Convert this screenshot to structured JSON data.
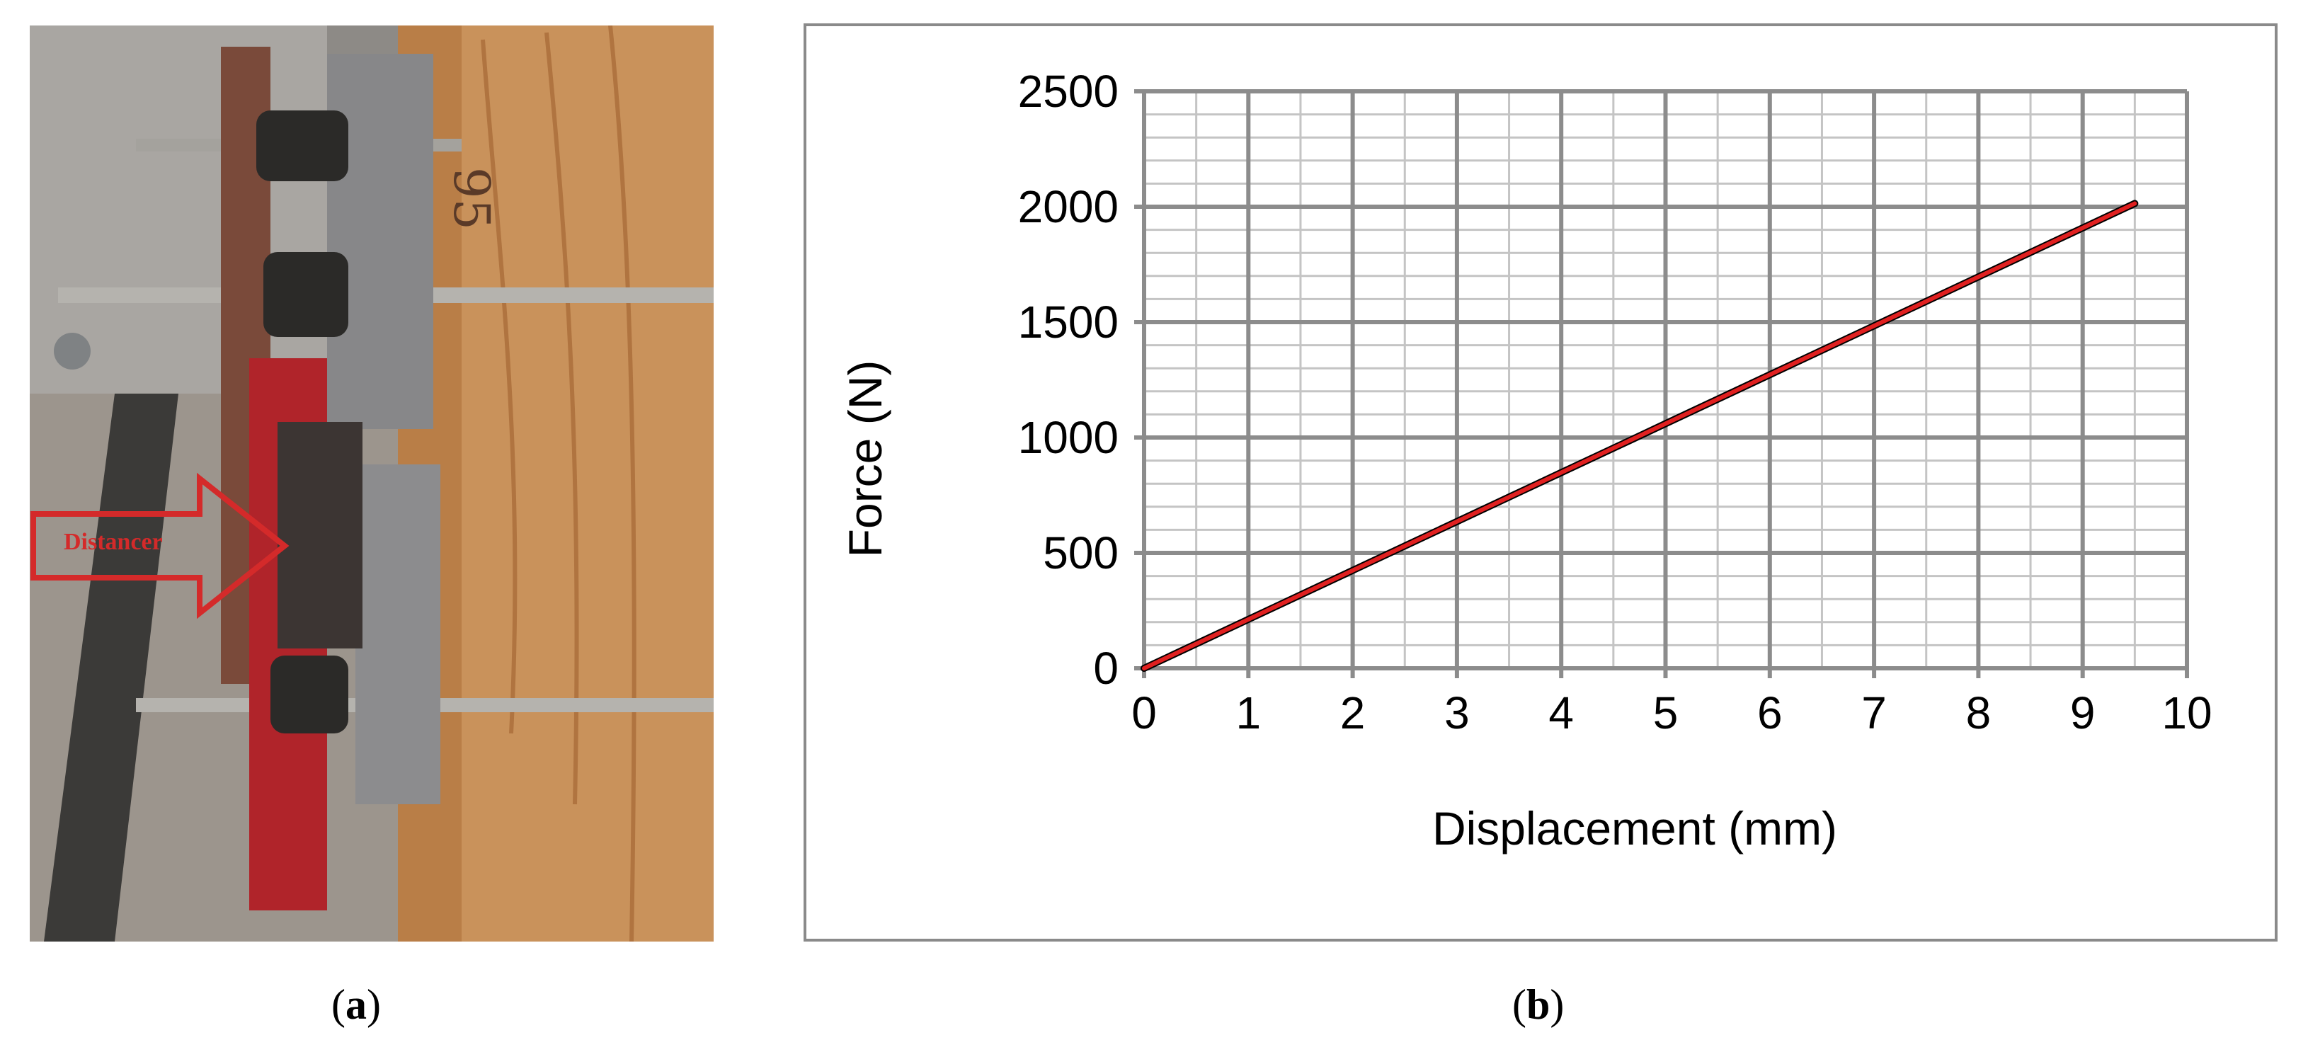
{
  "figure": {
    "panel_a": {
      "caption_open": "(",
      "caption_letter": "a",
      "caption_close": ")",
      "callout_text": "Distancer",
      "callout_color": "#d42a2a",
      "specimen_marking": "95"
    },
    "panel_b": {
      "caption_open": "(",
      "caption_letter": "b",
      "caption_close": ")"
    }
  },
  "chart_data": {
    "type": "line",
    "title": "",
    "xlabel": "Displacement (mm)",
    "ylabel": "Force (N)",
    "xlim": [
      0,
      10
    ],
    "ylim": [
      0,
      2500
    ],
    "x_ticks": [
      "0",
      "1",
      "2",
      "3",
      "4",
      "5",
      "6",
      "7",
      "8",
      "9",
      "10"
    ],
    "y_ticks": [
      "0",
      "500",
      "1000",
      "1500",
      "2000",
      "2500"
    ],
    "grid": "major and minor",
    "legend": "none",
    "series": [
      {
        "color": "#000000",
        "x": [
          0,
          1,
          2,
          3,
          4,
          4.7,
          5,
          6,
          7,
          8,
          9,
          9.5
        ],
        "y": [
          0,
          212,
          424,
          636,
          848,
          996,
          1060,
          1272,
          1484,
          1696,
          1908,
          2014
        ]
      },
      {
        "color": "#e02020",
        "x": [
          0,
          9.5
        ],
        "y": [
          0,
          2014
        ]
      }
    ]
  }
}
